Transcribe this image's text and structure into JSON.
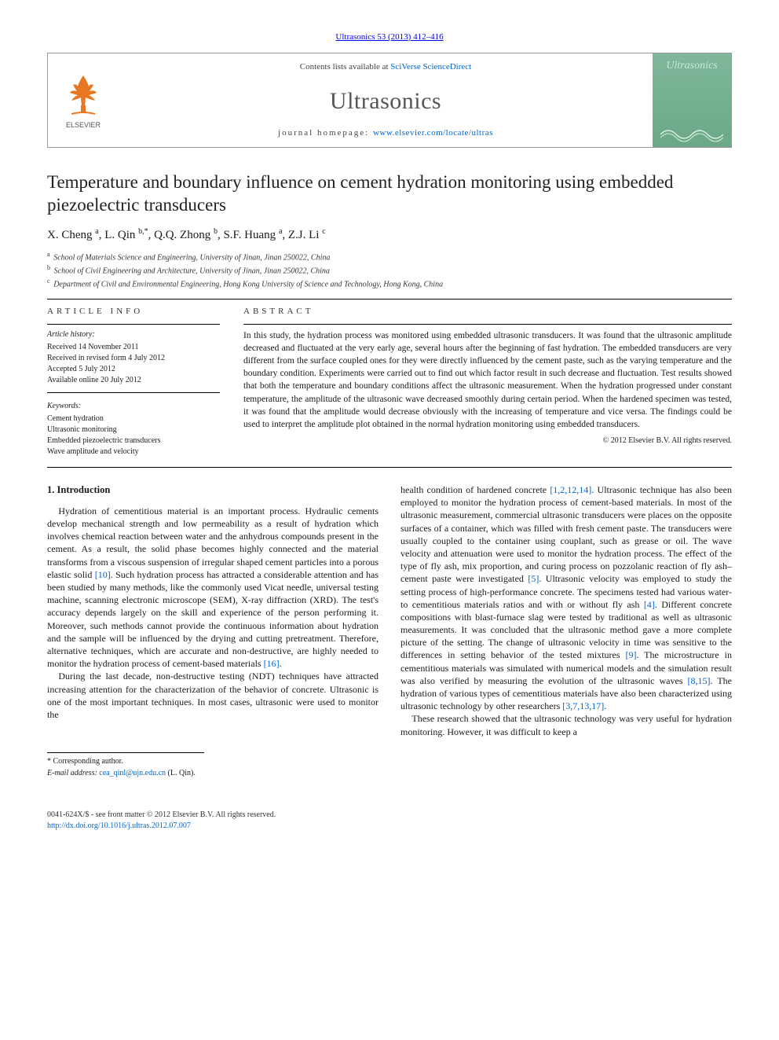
{
  "citation": "Ultrasonics 53 (2013) 412–416",
  "header": {
    "contents_prefix": "Contents lists available at ",
    "contents_link": "SciVerse ScienceDirect",
    "journal": "Ultrasonics",
    "homepage_prefix": "journal homepage: ",
    "homepage_link": "www.elsevier.com/locate/ultras",
    "publisher_name": "ELSEVIER",
    "cover_title": "Ultrasonics",
    "logo_colors": {
      "tree": "#e87722",
      "text": "#555"
    },
    "cover_colors": {
      "bg_top": "#7fb89a",
      "bg_bottom": "#6ba888",
      "title": "#c8e8d8",
      "wave": "#d8f0e0"
    }
  },
  "article": {
    "title": "Temperature and boundary influence on cement hydration monitoring using embedded piezoelectric transducers",
    "authors_html": "X. Cheng <sup>a</sup>, L. Qin <sup>b,*</sup>, Q.Q. Zhong <sup>b</sup>, S.F. Huang <sup>a</sup>, Z.J. Li <sup>c</sup>",
    "affiliations": [
      {
        "key": "a",
        "text": "School of Materials Science and Engineering, University of Jinan, Jinan 250022, China"
      },
      {
        "key": "b",
        "text": "School of Civil Engineering and Architecture, University of Jinan, Jinan 250022, China"
      },
      {
        "key": "c",
        "text": "Department of Civil and Environmental Engineering, Hong Kong University of Science and Technology, Hong Kong, China"
      }
    ]
  },
  "info": {
    "label": "ARTICLE INFO",
    "history_label": "Article history:",
    "history": [
      "Received 14 November 2011",
      "Received in revised form 4 July 2012",
      "Accepted 5 July 2012",
      "Available online 20 July 2012"
    ],
    "keywords_label": "Keywords:",
    "keywords": [
      "Cement hydration",
      "Ultrasonic monitoring",
      "Embedded piezoelectric transducers",
      "Wave amplitude and velocity"
    ]
  },
  "abstract": {
    "label": "ABSTRACT",
    "text": "In this study, the hydration process was monitored using embedded ultrasonic transducers. It was found that the ultrasonic amplitude decreased and fluctuated at the very early age, several hours after the beginning of fast hydration. The embedded transducers are very different from the surface coupled ones for they were directly influenced by the cement paste, such as the varying temperature and the boundary condition. Experiments were carried out to find out which factor result in such decrease and fluctuation. Test results showed that both the temperature and boundary conditions affect the ultrasonic measurement. When the hydration progressed under constant temperature, the amplitude of the ultrasonic wave decreased smoothly during certain period. When the hardened specimen was tested, it was found that the amplitude would decrease obviously with the increasing of temperature and vice versa. The findings could be used to interpret the amplitude plot obtained in the normal hydration monitoring using embedded transducers.",
    "copyright": "© 2012 Elsevier B.V. All rights reserved."
  },
  "body": {
    "heading": "1. Introduction",
    "col1": [
      "Hydration of cementitious material is an important process. Hydraulic cements develop mechanical strength and low permeability as a result of hydration which involves chemical reaction between water and the anhydrous compounds present in the cement. As a result, the solid phase becomes highly connected and the material transforms from a viscous suspension of irregular shaped cement particles into a porous elastic solid <span class=\"ref\">[10]</span>. Such hydration process has attracted a considerable attention and has been studied by many methods, like the commonly used Vicat needle, universal testing machine, scanning electronic microscope (SEM), X-ray diffraction (XRD). The test's accuracy depends largely on the skill and experience of the person performing it. Moreover, such methods cannot provide the continuous information about hydration and the sample will be influenced by the drying and cutting pretreatment. Therefore, alternative techniques, which are accurate and non-destructive, are highly needed to monitor the hydration process of cement-based materials <span class=\"ref\">[16]</span>.",
      "During the last decade, non-destructive testing (NDT) techniques have attracted increasing attention for the characterization of the behavior of concrete. Ultrasonic is one of the most important techniques. In most cases, ultrasonic were used to monitor the"
    ],
    "col2": [
      "health condition of hardened concrete <span class=\"ref\">[1,2,12,14]</span>. Ultrasonic technique has also been employed to monitor the hydration process of cement-based materials. In most of the ultrasonic measurement, commercial ultrasonic transducers were places on the opposite surfaces of a container, which was filled with fresh cement paste. The transducers were usually coupled to the container using couplant, such as grease or oil. The wave velocity and attenuation were used to monitor the hydration process. The effect of the type of fly ash, mix proportion, and curing process on pozzolanic reaction of fly ash–cement paste were investigated <span class=\"ref\">[5]</span>. Ultrasonic velocity was employed to study the setting process of high-performance concrete. The specimens tested had various water-to cementitious materials ratios and with or without fly ash <span class=\"ref\">[4]</span>. Different concrete compositions with blast-furnace slag were tested by traditional as well as ultrasonic measurements. It was concluded that the ultrasonic method gave a more complete picture of the setting. The change of ultrasonic velocity in time was sensitive to the differences in setting behavior of the tested mixtures <span class=\"ref\">[9]</span>. The microstructure in cementitious materials was simulated with numerical models and the simulation result was also verified by measuring the evolution of the ultrasonic waves <span class=\"ref\">[8,15]</span>. The hydration of various types of cementitious materials have also been characterized using ultrasonic technology by other researchers <span class=\"ref\">[3,7,13,17]</span>.",
      "These research showed that the ultrasonic technology was very useful for hydration monitoring. However, it was difficult to keep a"
    ]
  },
  "footer": {
    "corresponding": "* Corresponding author.",
    "email_label": "E-mail address: ",
    "email": "cea_qinl@ujn.edu.cn",
    "email_suffix": " (L. Qin).",
    "issn_line": "0041-624X/$ - see front matter © 2012 Elsevier B.V. All rights reserved.",
    "doi": "http://dx.doi.org/10.1016/j.ultras.2012.07.007"
  },
  "colors": {
    "link": "#0066cc",
    "text": "#1a1a1a",
    "rule": "#000000"
  }
}
